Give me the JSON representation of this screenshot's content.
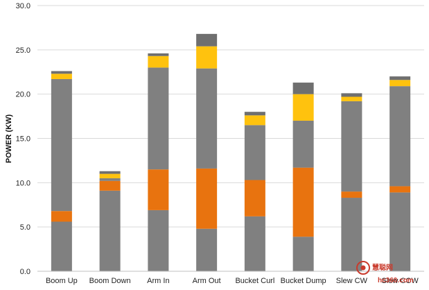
{
  "chart_data": {
    "type": "bar",
    "stacked": true,
    "title": "",
    "xlabel": "",
    "ylabel": "POWER (KW)",
    "ylim": [
      0,
      30
    ],
    "yticks": [
      "0.0",
      "5.0",
      "10.0",
      "15.0",
      "20.0",
      "25.0",
      "30.0"
    ],
    "grid": true,
    "legend": "none",
    "categories": [
      "Boom Up",
      "Boom Down",
      "Arm In",
      "Arm Out",
      "Bucket Curl",
      "Bucket Dump",
      "Slew CW",
      "Slew CCW"
    ],
    "series": [
      {
        "color": "#808080",
        "values": [
          5.6,
          9.1,
          6.9,
          4.8,
          6.2,
          3.9,
          8.3,
          8.9
        ]
      },
      {
        "color": "#e8730f",
        "values": [
          1.2,
          1.1,
          4.6,
          6.8,
          4.1,
          7.8,
          0.7,
          0.7
        ]
      },
      {
        "color": "#808080",
        "values": [
          14.9,
          0.3,
          11.5,
          11.3,
          6.2,
          5.3,
          10.2,
          11.3
        ]
      },
      {
        "color": "#ffc20e",
        "values": [
          0.6,
          0.5,
          1.3,
          2.5,
          1.1,
          3.0,
          0.5,
          0.7
        ]
      },
      {
        "color": "#6f6f6f",
        "values": [
          0.3,
          0.3,
          0.3,
          1.4,
          0.4,
          1.3,
          0.4,
          0.4
        ]
      }
    ]
  },
  "watermark": {
    "text_main": "慧聪网",
    "text_sub": "hc360.com"
  }
}
